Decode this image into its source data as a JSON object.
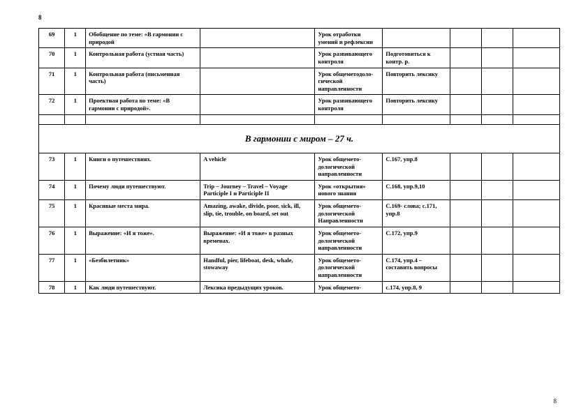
{
  "page_number_top": "8",
  "page_number_bottom": "8",
  "section_title": "В гармонии с миром – 27 ч.",
  "rows_before": [
    {
      "num": "69",
      "hours": "1",
      "topic": "Обобщение по теме: «В гармонии с природой",
      "material": "",
      "type": "Урок отработки умений и рефлексии",
      "hw": ""
    },
    {
      "num": "70",
      "hours": "1",
      "topic": "Контрольная работа (устная часть)",
      "material": "",
      "type": "Урок развивающего контроля",
      "hw": "Подготовиться к контр. р."
    },
    {
      "num": "71",
      "hours": "1",
      "topic": "Контрольная работа (письменная часть)",
      "material": "",
      "type": "Урок общеметодоло-гической направленности",
      "hw": " Повторить лексику"
    },
    {
      "num": "72",
      "hours": "1",
      "topic": "Проектная работа по теме: «В гармонии с природой».",
      "material": "",
      "type": "Урок развивающего контроля",
      "hw": " Повторить лексику"
    }
  ],
  "rows_after": [
    {
      "num": "73",
      "hours": "1",
      "topic": " Книги о путешествиях.",
      "material": "A vehicle",
      "type": "Урок общемето-дологической направленности",
      "hw": "С.167, упр.8"
    },
    {
      "num": "74",
      "hours": "1",
      "topic": "Почему люди путешествуют.",
      "material": "Trip – Journey – Travel – Voyage Participle I и Participle II",
      "type": "Урок «открытия» нового знания",
      "hw": "С.168, упр.9,10"
    },
    {
      "num": "75",
      "hours": "1",
      "topic": "Красивые места мира.",
      "material": "Amazing, awake, divide, poor, sick, ill, slip, tie, trouble, on board, set out",
      "type": "Урок общемето-дологической Направленности",
      "hw": "С.169- слова; с.171, упр.8"
    },
    {
      "num": "76",
      "hours": "1",
      "topic": "Выражение: «И я тоже».",
      "material": "Выражение: «И я тоже» в разных временах.",
      "type": "Урок общемето-дологической направленности",
      "hw": "С.172, упр.9"
    },
    {
      "num": "77",
      "hours": "1",
      "topic": " «Безбилетник»",
      "material": "Handful, pier, lifeboat, desk, whale, stowaway",
      "type": "Урок общемето-дологической направленности",
      "hw": "С.174, упр.4 – составить вопросы"
    },
    {
      "num": "78",
      "hours": "1",
      "topic": "Как люди путешествуют.",
      "material": "Лексика предыдущих уроков.",
      "type": "Урок общемето-",
      "hw": "с.174, упр.8, 9"
    }
  ]
}
